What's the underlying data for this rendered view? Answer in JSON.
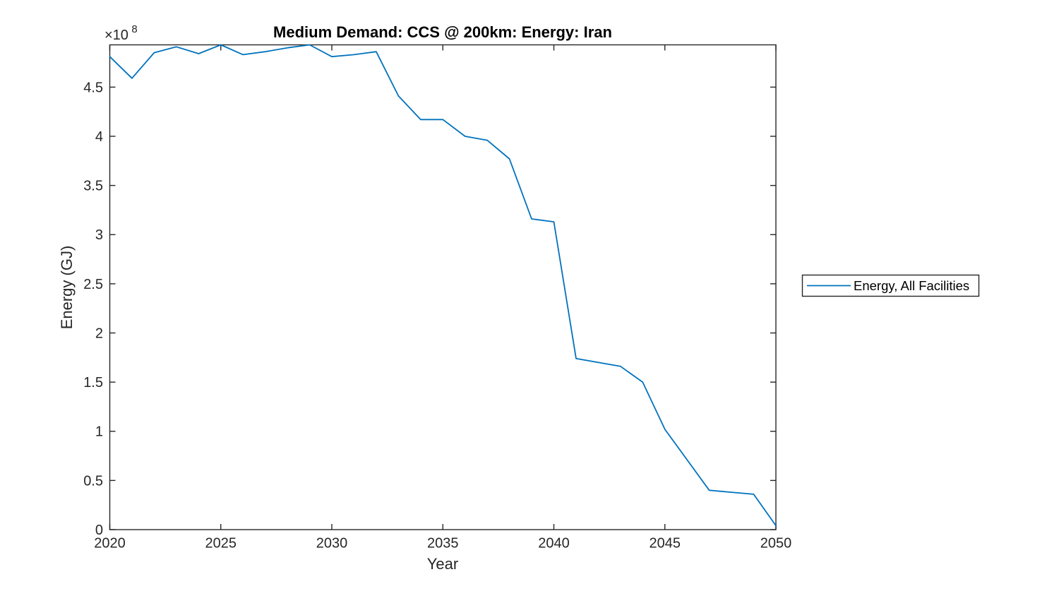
{
  "chart_data": {
    "type": "line",
    "title": "Medium Demand: CCS @ 200km: Energy: Iran",
    "xlabel": "Year",
    "ylabel": "Energy (GJ)",
    "y_multiplier_base": "×10",
    "y_multiplier_exp": "8",
    "value_unit": "GJ",
    "value_scale": 100000000.0,
    "xlim": [
      2020,
      2050
    ],
    "ylim": [
      0,
      4.93
    ],
    "grid": false,
    "box": true,
    "x_ticks": [
      2020,
      2025,
      2030,
      2035,
      2040,
      2045,
      2050
    ],
    "x_tick_labels": [
      "2020",
      "2025",
      "2030",
      "2035",
      "2040",
      "2045",
      "2050"
    ],
    "y_ticks": [
      0,
      0.5,
      1,
      1.5,
      2,
      2.5,
      3,
      3.5,
      4,
      4.5
    ],
    "y_tick_labels": [
      "0",
      "0.5",
      "1",
      "1.5",
      "2",
      "2.5",
      "3",
      "3.5",
      "4",
      "4.5"
    ],
    "x": [
      2020,
      2021,
      2022,
      2023,
      2024,
      2025,
      2026,
      2027,
      2028,
      2029,
      2030,
      2031,
      2032,
      2033,
      2034,
      2035,
      2036,
      2037,
      2038,
      2039,
      2040,
      2041,
      2042,
      2043,
      2044,
      2045,
      2046,
      2047,
      2048,
      2049,
      2050
    ],
    "series": [
      {
        "name": "Energy, All Facilities",
        "color": "#0072BD",
        "values_e8": [
          4.81,
          4.59,
          4.85,
          4.91,
          4.84,
          4.93,
          4.83,
          4.86,
          4.9,
          4.93,
          4.81,
          4.83,
          4.86,
          4.41,
          4.17,
          4.17,
          4.0,
          3.96,
          3.77,
          3.16,
          3.13,
          1.74,
          1.7,
          1.66,
          1.5,
          1.02,
          0.71,
          0.4,
          0.38,
          0.36,
          0.04
        ]
      }
    ],
    "legend": {
      "label": "Energy, All Facilities",
      "position": "right-outside"
    },
    "axis_color": "#262626"
  }
}
